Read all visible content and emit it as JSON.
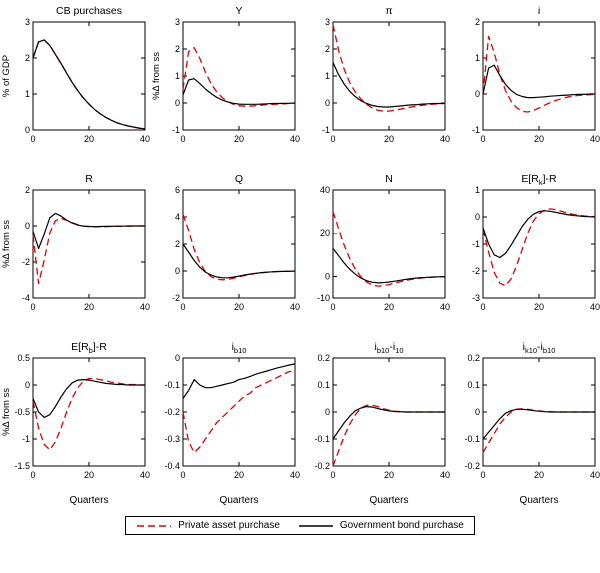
{
  "figure": {
    "background": "#ffffff",
    "axis_color": "#000000",
    "series_styles": [
      {
        "name": "Private asset purchase",
        "color": "#e30000",
        "dash": "7,4",
        "width": 1.3
      },
      {
        "name": "Government bond purchase",
        "color": "#000000",
        "dash": "",
        "width": 1.2
      }
    ]
  },
  "chart_data": [
    {
      "type": "line",
      "title": "CB purchases",
      "ylabel": "% of GDP",
      "xlim": [
        0,
        40
      ],
      "xticks": [
        0,
        20,
        40
      ],
      "ylim": [
        0,
        3
      ],
      "yticks": [
        0,
        1,
        2,
        3
      ],
      "x": [
        0,
        2,
        4,
        6,
        8,
        10,
        12,
        14,
        16,
        18,
        20,
        22,
        24,
        26,
        28,
        30,
        32,
        34,
        36,
        38,
        40
      ],
      "series": [
        {
          "name": "Private asset purchase",
          "values": [
            2.0,
            2.45,
            2.5,
            2.35,
            2.1,
            1.85,
            1.58,
            1.32,
            1.09,
            0.89,
            0.72,
            0.57,
            0.45,
            0.35,
            0.27,
            0.2,
            0.15,
            0.11,
            0.08,
            0.05,
            0.03
          ]
        },
        {
          "name": "Government bond purchase",
          "values": [
            2.0,
            2.45,
            2.5,
            2.35,
            2.1,
            1.85,
            1.58,
            1.32,
            1.09,
            0.89,
            0.72,
            0.57,
            0.45,
            0.35,
            0.27,
            0.2,
            0.15,
            0.11,
            0.08,
            0.05,
            0.03
          ]
        }
      ]
    },
    {
      "type": "line",
      "title": "Y",
      "ylabel": "%Δ from ss",
      "xlim": [
        0,
        40
      ],
      "xticks": [
        0,
        20,
        40
      ],
      "ylim": [
        -1,
        3
      ],
      "yticks": [
        -1,
        0,
        1,
        2,
        3
      ],
      "x": [
        0,
        2,
        4,
        6,
        8,
        10,
        12,
        14,
        16,
        18,
        20,
        22,
        24,
        26,
        28,
        30,
        32,
        34,
        36,
        38,
        40
      ],
      "series": [
        {
          "name": "Private asset purchase",
          "values": [
            0.5,
            1.9,
            2.05,
            1.65,
            1.15,
            0.72,
            0.42,
            0.2,
            0.05,
            -0.05,
            -0.1,
            -0.12,
            -0.12,
            -0.1,
            -0.08,
            -0.06,
            -0.05,
            -0.04,
            -0.03,
            -0.02,
            -0.01
          ]
        },
        {
          "name": "Government bond purchase",
          "values": [
            0.3,
            0.85,
            0.9,
            0.72,
            0.52,
            0.35,
            0.21,
            0.11,
            0.04,
            -0.01,
            -0.04,
            -0.05,
            -0.05,
            -0.05,
            -0.04,
            -0.03,
            -0.02,
            -0.02,
            -0.01,
            -0.01,
            0
          ]
        }
      ]
    },
    {
      "type": "line",
      "title": "π",
      "xlim": [
        0,
        40
      ],
      "xticks": [
        0,
        20,
        40
      ],
      "ylim": [
        -1,
        3
      ],
      "yticks": [
        -1,
        0,
        1,
        2,
        3
      ],
      "x": [
        0,
        2,
        4,
        6,
        8,
        10,
        12,
        14,
        16,
        18,
        20,
        22,
        24,
        26,
        28,
        30,
        32,
        34,
        36,
        38,
        40
      ],
      "series": [
        {
          "name": "Private asset purchase",
          "values": [
            2.9,
            1.95,
            1.25,
            0.75,
            0.4,
            0.15,
            -0.05,
            -0.18,
            -0.27,
            -0.3,
            -0.3,
            -0.27,
            -0.23,
            -0.19,
            -0.15,
            -0.11,
            -0.08,
            -0.06,
            -0.04,
            -0.03,
            -0.02
          ]
        },
        {
          "name": "Government bond purchase",
          "values": [
            1.5,
            1.05,
            0.7,
            0.43,
            0.23,
            0.08,
            -0.02,
            -0.09,
            -0.13,
            -0.15,
            -0.15,
            -0.13,
            -0.11,
            -0.09,
            -0.07,
            -0.06,
            -0.04,
            -0.03,
            -0.02,
            -0.02,
            -0.01
          ]
        }
      ]
    },
    {
      "type": "line",
      "title": "i",
      "xlim": [
        0,
        40
      ],
      "xticks": [
        0,
        20,
        40
      ],
      "ylim": [
        -1,
        2
      ],
      "yticks": [
        -1,
        0,
        1,
        2
      ],
      "x": [
        0,
        2,
        4,
        6,
        8,
        10,
        12,
        14,
        16,
        18,
        20,
        22,
        24,
        26,
        28,
        30,
        32,
        34,
        36,
        38,
        40
      ],
      "series": [
        {
          "name": "Private asset purchase",
          "values": [
            0,
            1.6,
            1.15,
            0.55,
            0.1,
            -0.2,
            -0.38,
            -0.48,
            -0.5,
            -0.46,
            -0.39,
            -0.31,
            -0.24,
            -0.18,
            -0.13,
            -0.09,
            -0.06,
            -0.04,
            -0.03,
            -0.02,
            -0.01
          ]
        },
        {
          "name": "Government bond purchase",
          "values": [
            0,
            0.72,
            0.8,
            0.52,
            0.27,
            0.1,
            -0.01,
            -0.07,
            -0.1,
            -0.1,
            -0.09,
            -0.08,
            -0.06,
            -0.05,
            -0.04,
            -0.03,
            -0.02,
            -0.01,
            -0.01,
            0,
            0
          ]
        }
      ]
    },
    {
      "type": "line",
      "title": "R",
      "ylabel": "%Δ from ss",
      "xlim": [
        0,
        40
      ],
      "xticks": [
        0,
        20,
        40
      ],
      "ylim": [
        -4,
        2
      ],
      "yticks": [
        -4,
        -2,
        0,
        2
      ],
      "x": [
        0,
        2,
        4,
        6,
        8,
        10,
        12,
        14,
        16,
        18,
        20,
        22,
        24,
        26,
        28,
        30,
        32,
        34,
        36,
        38,
        40
      ],
      "series": [
        {
          "name": "Private asset purchase",
          "values": [
            -0.5,
            -3.2,
            -1.9,
            -0.4,
            0.3,
            0.42,
            0.32,
            0.18,
            0.07,
            0,
            -0.04,
            -0.05,
            -0.05,
            -0.04,
            -0.03,
            -0.02,
            -0.01,
            -0.01,
            0,
            0,
            0
          ]
        },
        {
          "name": "Government bond purchase",
          "values": [
            -0.3,
            -1.25,
            -0.45,
            0.45,
            0.7,
            0.55,
            0.33,
            0.16,
            0.05,
            -0.01,
            -0.03,
            -0.04,
            -0.03,
            -0.02,
            -0.02,
            -0.01,
            -0.01,
            0,
            0,
            0,
            0
          ]
        }
      ]
    },
    {
      "type": "line",
      "title": "Q",
      "xlim": [
        0,
        40
      ],
      "xticks": [
        0,
        20,
        40
      ],
      "ylim": [
        -2,
        6
      ],
      "yticks": [
        -2,
        0,
        2,
        4,
        6
      ],
      "x": [
        0,
        2,
        4,
        6,
        8,
        10,
        12,
        14,
        16,
        18,
        20,
        22,
        24,
        26,
        28,
        30,
        32,
        34,
        36,
        38,
        40
      ],
      "series": [
        {
          "name": "Private asset purchase",
          "values": [
            4.2,
            3,
            1.6,
            0.6,
            -0.05,
            -0.42,
            -0.6,
            -0.65,
            -0.62,
            -0.53,
            -0.43,
            -0.33,
            -0.25,
            -0.18,
            -0.13,
            -0.09,
            -0.06,
            -0.04,
            -0.03,
            -0.02,
            -0.01
          ]
        },
        {
          "name": "Government bond purchase",
          "values": [
            2,
            1.4,
            0.78,
            0.28,
            -0.08,
            -0.3,
            -0.44,
            -0.5,
            -0.5,
            -0.45,
            -0.38,
            -0.3,
            -0.23,
            -0.17,
            -0.12,
            -0.09,
            -0.06,
            -0.04,
            -0.03,
            -0.02,
            -0.01
          ]
        }
      ]
    },
    {
      "type": "line",
      "title": "N",
      "xlim": [
        0,
        40
      ],
      "xticks": [
        0,
        20,
        40
      ],
      "ylim": [
        -10,
        40
      ],
      "yticks": [
        -10,
        0,
        20,
        40
      ],
      "x": [
        0,
        2,
        4,
        6,
        8,
        10,
        12,
        14,
        16,
        18,
        20,
        22,
        24,
        26,
        28,
        30,
        32,
        34,
        36,
        38,
        40
      ],
      "series": [
        {
          "name": "Private asset purchase",
          "values": [
            30,
            22,
            14.5,
            8.2,
            3.3,
            -0.2,
            -2.6,
            -4,
            -4.5,
            -4.3,
            -3.8,
            -3.1,
            -2.5,
            -1.9,
            -1.4,
            -1,
            -0.7,
            -0.5,
            -0.3,
            -0.2,
            -0.1
          ]
        },
        {
          "name": "Government bond purchase",
          "values": [
            13,
            9.6,
            6.2,
            3.3,
            1,
            -0.8,
            -2,
            -2.7,
            -3,
            -2.9,
            -2.6,
            -2.2,
            -1.8,
            -1.4,
            -1,
            -0.75,
            -0.55,
            -0.4,
            -0.28,
            -0.18,
            -0.1
          ]
        }
      ]
    },
    {
      "type": "line",
      "title": "E[R_k]-R",
      "xlim": [
        0,
        40
      ],
      "xticks": [
        0,
        20,
        40
      ],
      "ylim": [
        -3,
        1
      ],
      "yticks": [
        -3,
        -2,
        -1,
        0,
        1
      ],
      "x": [
        0,
        2,
        4,
        6,
        8,
        10,
        12,
        14,
        16,
        18,
        20,
        22,
        24,
        26,
        28,
        30,
        32,
        34,
        36,
        38,
        40
      ],
      "series": [
        {
          "name": "Private asset purchase",
          "values": [
            -0.45,
            -1.3,
            -2.05,
            -2.45,
            -2.55,
            -2.3,
            -1.8,
            -1.2,
            -0.6,
            -0.15,
            0.12,
            0.26,
            0.3,
            0.27,
            0.21,
            0.15,
            0.1,
            0.07,
            0.04,
            0.02,
            0.01
          ]
        },
        {
          "name": "Government bond purchase",
          "values": [
            -0.4,
            -1,
            -1.4,
            -1.5,
            -1.35,
            -1.05,
            -0.7,
            -0.35,
            -0.08,
            0.1,
            0.2,
            0.23,
            0.21,
            0.17,
            0.13,
            0.09,
            0.06,
            0.04,
            0.02,
            0.01,
            0
          ]
        }
      ]
    },
    {
      "type": "line",
      "title": "E[R_b]-R",
      "ylabel": "%Δ from ss",
      "xlabel": "Quarters",
      "xlim": [
        0,
        40
      ],
      "xticks": [
        0,
        20,
        40
      ],
      "ylim": [
        -1.5,
        0.5
      ],
      "yticks": [
        -1.5,
        -1,
        -0.5,
        0,
        0.5
      ],
      "x": [
        0,
        2,
        4,
        6,
        8,
        10,
        12,
        14,
        16,
        18,
        20,
        22,
        24,
        26,
        28,
        30,
        32,
        34,
        36,
        38,
        40
      ],
      "series": [
        {
          "name": "Private asset purchase",
          "values": [
            -0.3,
            -0.8,
            -1.1,
            -1.2,
            -1.05,
            -0.8,
            -0.5,
            -0.24,
            -0.05,
            0.07,
            0.12,
            0.12,
            0.1,
            0.08,
            0.05,
            0.04,
            0.02,
            0.01,
            0.01,
            0,
            0
          ]
        },
        {
          "name": "Government bond purchase",
          "values": [
            -0.25,
            -0.5,
            -0.6,
            -0.55,
            -0.4,
            -0.22,
            -0.07,
            0.04,
            0.09,
            0.1,
            0.09,
            0.07,
            0.05,
            0.03,
            0.02,
            0.01,
            0.01,
            0,
            0,
            0,
            0
          ]
        }
      ]
    },
    {
      "type": "line",
      "title": "i_b10",
      "xlabel": "Quarters",
      "xlim": [
        0,
        40
      ],
      "xticks": [
        0,
        20,
        40
      ],
      "ylim": [
        -0.4,
        0
      ],
      "yticks": [
        -0.4,
        -0.3,
        -0.2,
        -0.1,
        0
      ],
      "x": [
        0,
        2,
        4,
        6,
        8,
        10,
        12,
        14,
        16,
        18,
        20,
        22,
        24,
        26,
        28,
        30,
        32,
        34,
        36,
        38,
        40
      ],
      "series": [
        {
          "name": "Private asset purchase",
          "values": [
            -0.2,
            -0.31,
            -0.35,
            -0.33,
            -0.3,
            -0.27,
            -0.24,
            -0.22,
            -0.2,
            -0.18,
            -0.16,
            -0.14,
            -0.13,
            -0.11,
            -0.1,
            -0.09,
            -0.08,
            -0.07,
            -0.06,
            -0.05,
            -0.05
          ]
        },
        {
          "name": "Government bond purchase",
          "values": [
            -0.15,
            -0.12,
            -0.08,
            -0.1,
            -0.11,
            -0.11,
            -0.105,
            -0.1,
            -0.095,
            -0.09,
            -0.08,
            -0.075,
            -0.068,
            -0.06,
            -0.054,
            -0.048,
            -0.042,
            -0.036,
            -0.031,
            -0.026,
            -0.022
          ]
        }
      ]
    },
    {
      "type": "line",
      "title": "i_b10-i_10",
      "xlabel": "Quarters",
      "xlim": [
        0,
        40
      ],
      "xticks": [
        0,
        20,
        40
      ],
      "ylim": [
        -0.2,
        0.2
      ],
      "yticks": [
        -0.2,
        -0.1,
        0,
        0.1,
        0.2
      ],
      "x": [
        0,
        2,
        4,
        6,
        8,
        10,
        12,
        14,
        16,
        18,
        20,
        22,
        24,
        26,
        28,
        30,
        32,
        34,
        36,
        38,
        40
      ],
      "series": [
        {
          "name": "Private asset purchase",
          "values": [
            -0.2,
            -0.145,
            -0.09,
            -0.045,
            -0.01,
            0.015,
            0.025,
            0.025,
            0.02,
            0.012,
            0.007,
            0.003,
            0.001,
            0,
            0,
            0,
            0,
            0,
            0,
            0,
            0
          ]
        },
        {
          "name": "Government bond purchase",
          "values": [
            -0.1,
            -0.07,
            -0.04,
            -0.015,
            0.005,
            0.015,
            0.02,
            0.018,
            0.013,
            0.008,
            0.004,
            0.002,
            0.001,
            0,
            0,
            0,
            0,
            0,
            0,
            0,
            0
          ]
        }
      ]
    },
    {
      "type": "line",
      "title": "i_k10-i_b10",
      "xlabel": "Quarters",
      "xlim": [
        0,
        40
      ],
      "xticks": [
        0,
        20,
        40
      ],
      "ylim": [
        -0.2,
        0.2
      ],
      "yticks": [
        -0.2,
        -0.1,
        0,
        0.1,
        0.2
      ],
      "x": [
        0,
        2,
        4,
        6,
        8,
        10,
        12,
        14,
        16,
        18,
        20,
        22,
        24,
        26,
        28,
        30,
        32,
        34,
        36,
        38,
        40
      ],
      "series": [
        {
          "name": "Private asset purchase",
          "values": [
            -0.15,
            -0.115,
            -0.08,
            -0.045,
            -0.02,
            0,
            0.01,
            0.012,
            0.01,
            0.007,
            0.004,
            0.002,
            0.001,
            0,
            0,
            0,
            0,
            0,
            0,
            0,
            0
          ]
        },
        {
          "name": "Government bond purchase",
          "values": [
            -0.1,
            -0.075,
            -0.05,
            -0.025,
            -0.005,
            0.005,
            0.01,
            0.01,
            0.008,
            0.005,
            0.003,
            0.001,
            0,
            0,
            0,
            0,
            0,
            0,
            0,
            0,
            0
          ]
        }
      ]
    }
  ],
  "legend": {
    "items": [
      "Private asset purchase",
      "Government bond purchase"
    ]
  }
}
